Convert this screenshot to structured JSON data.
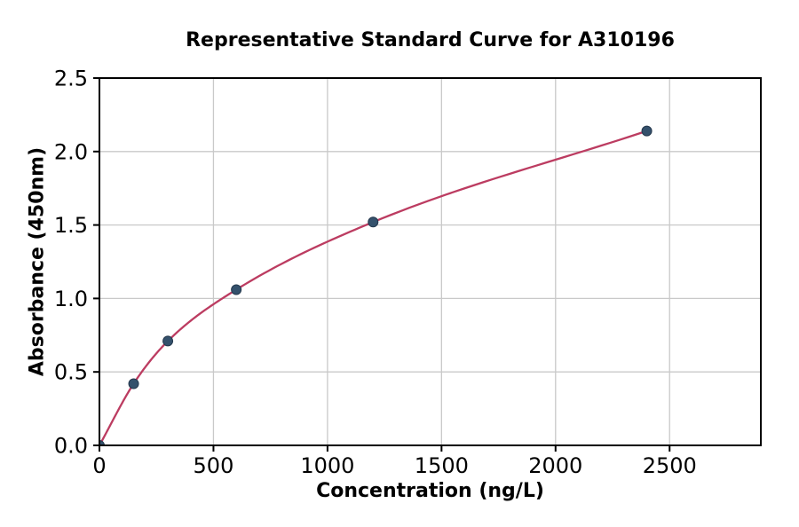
{
  "chart_data": {
    "type": "scatter",
    "title": "Representative Standard Curve for A310196",
    "xlabel": "Concentration (ng/L)",
    "ylabel": "Absorbance (450nm)",
    "xlim": [
      0,
      2900
    ],
    "ylim": [
      0,
      2.5
    ],
    "x_ticks": [
      0,
      500,
      1000,
      1500,
      2000,
      2500
    ],
    "y_ticks": [
      0.0,
      0.5,
      1.0,
      1.5,
      2.0,
      2.5
    ],
    "y_tick_decimals": 1,
    "grid": true,
    "legend_position": "none",
    "points": [
      {
        "x": 0,
        "y": 0.0
      },
      {
        "x": 150,
        "y": 0.42
      },
      {
        "x": 300,
        "y": 0.71
      },
      {
        "x": 600,
        "y": 1.06
      },
      {
        "x": 1200,
        "y": 1.52
      },
      {
        "x": 2400,
        "y": 2.14
      }
    ],
    "curve": "smooth fit through points from x=0 to x=2400",
    "colors": {
      "curve": "#bc3c61",
      "marker_fill": "#34516c",
      "marker_edge": "#24384d",
      "grid": "#c9c9c9",
      "spine": "#000000",
      "text": "#000000",
      "background": "#ffffff"
    }
  }
}
